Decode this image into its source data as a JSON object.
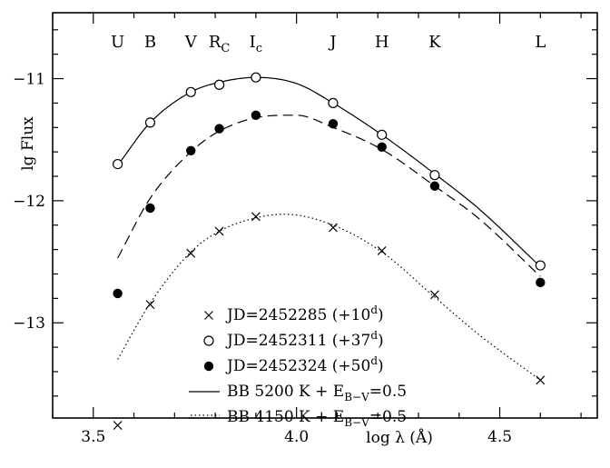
{
  "chart_data": {
    "type": "scatter",
    "title": "",
    "xlabel": "log λ (Å)",
    "ylabel": "lg Flux",
    "xlim": [
      3.4,
      4.74
    ],
    "ylim": [
      -13.78,
      -10.46
    ],
    "xticks": [
      3.5,
      4.0,
      4.5
    ],
    "xtick_labels": [
      "3.5",
      "4.0",
      "4.5"
    ],
    "yticks": [
      -11,
      -12,
      -13
    ],
    "ytick_labels": [
      "−11",
      "−12",
      "−13"
    ],
    "grid": false,
    "legend_position": "bottom-center",
    "bands": [
      {
        "name": "U",
        "sub": "",
        "x": 3.56
      },
      {
        "name": "B",
        "sub": "",
        "x": 3.64
      },
      {
        "name": "V",
        "sub": "",
        "x": 3.74
      },
      {
        "name": "R",
        "sub": "C",
        "x": 3.81
      },
      {
        "name": "I",
        "sub": "c",
        "x": 3.9
      },
      {
        "name": "J",
        "sub": "",
        "x": 4.09
      },
      {
        "name": "H",
        "sub": "",
        "x": 4.21
      },
      {
        "name": "K",
        "sub": "",
        "x": 4.34
      },
      {
        "name": "L",
        "sub": "",
        "x": 4.6
      }
    ],
    "series": [
      {
        "name": "JD=2452285 (+10",
        "sup": "d",
        "close": ")",
        "marker": "cross",
        "x": [
          3.56,
          3.64,
          3.74,
          3.81,
          3.9,
          4.09,
          4.21,
          4.34,
          4.6
        ],
        "y": [
          -13.84,
          -12.85,
          -12.43,
          -12.25,
          -12.13,
          -12.22,
          -12.41,
          -12.77,
          -13.47
        ]
      },
      {
        "name": "JD=2452311 (+37",
        "sup": "d",
        "close": ")",
        "marker": "open-circle",
        "x": [
          3.56,
          3.64,
          3.74,
          3.81,
          3.9,
          4.09,
          4.21,
          4.34,
          4.6
        ],
        "y": [
          -11.7,
          -11.36,
          -11.11,
          -11.05,
          -10.99,
          -11.2,
          -11.46,
          -11.79,
          -12.53
        ]
      },
      {
        "name": "JD=2452324 (+50",
        "sup": "d",
        "close": ")",
        "marker": "filled-circle",
        "x": [
          3.56,
          3.64,
          3.74,
          3.81,
          3.9,
          4.09,
          4.21,
          4.34,
          4.6
        ],
        "y": [
          -12.76,
          -12.06,
          -11.59,
          -11.41,
          -11.3,
          -11.37,
          -11.56,
          -11.88,
          -12.67
        ]
      }
    ],
    "models": [
      {
        "name": "BB 5200 K + E",
        "sub": "B−V",
        "tail": "=0.5",
        "style": "solid",
        "x": [
          3.56,
          3.64,
          3.74,
          3.81,
          3.9,
          4.0,
          4.09,
          4.21,
          4.34,
          4.45,
          4.6
        ],
        "y": [
          -11.71,
          -11.36,
          -11.11,
          -11.03,
          -10.99,
          -11.04,
          -11.2,
          -11.46,
          -11.78,
          -12.07,
          -12.54
        ]
      },
      {
        "name": "BB 4150 K + E",
        "sub": "B−V",
        "tail": "=0.5",
        "style": "dashed",
        "x": [
          3.56,
          3.64,
          3.74,
          3.81,
          3.9,
          4.0,
          4.09,
          4.21,
          4.34,
          4.45,
          4.6
        ],
        "y": [
          -12.47,
          -11.98,
          -11.6,
          -11.43,
          -11.32,
          -11.3,
          -11.4,
          -11.58,
          -11.88,
          -12.15,
          -12.62
        ]
      },
      {
        "name": "",
        "sub": "",
        "tail": "",
        "style": "dotted",
        "x": [
          3.56,
          3.64,
          3.74,
          3.81,
          3.9,
          3.97,
          4.09,
          4.21,
          4.34,
          4.45,
          4.6
        ],
        "y": [
          -13.3,
          -12.84,
          -12.42,
          -12.25,
          -12.14,
          -12.11,
          -12.2,
          -12.42,
          -12.79,
          -13.1,
          -13.47
        ]
      }
    ]
  }
}
